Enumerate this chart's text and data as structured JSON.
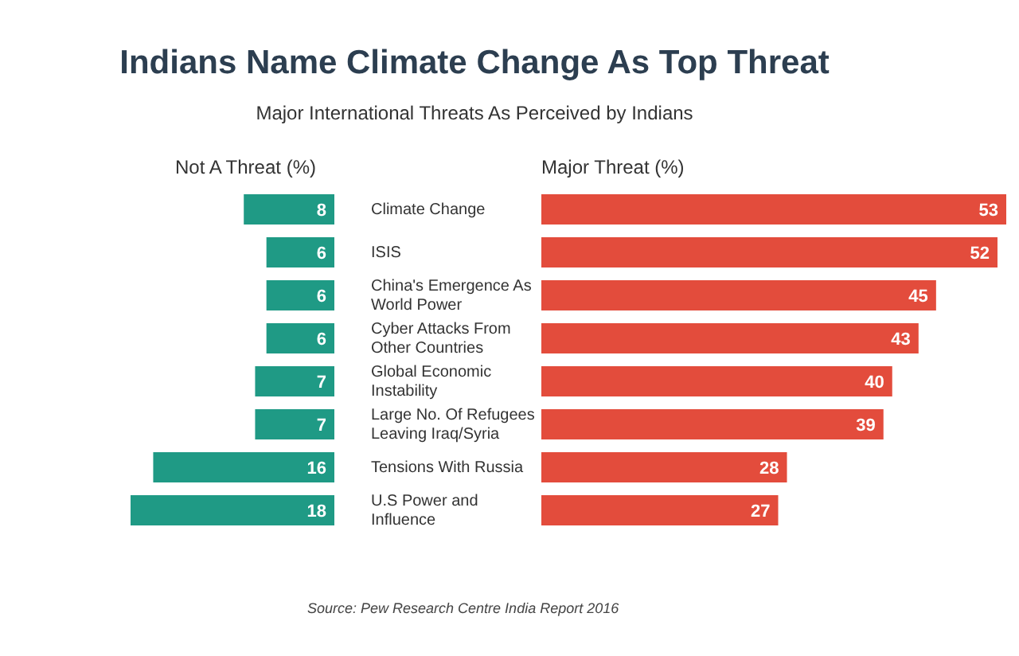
{
  "chart_data": [
    {
      "type": "bar",
      "orientation": "horizontal",
      "title": "Indians Name Climate Change As Top Threat",
      "subtitle": "Major International Threats As Perceived by Indians",
      "xlabel": "Not A Threat (%)",
      "categories": [
        "Climate Change",
        "ISIS",
        "China's Emergence As World Power",
        "Cyber Attacks From Other Countries",
        "Global Economic Instability",
        "Large No. Of Refugees Leaving Iraq/Syria",
        "Tensions With Russia",
        "U.S Power and Influence"
      ],
      "values": [
        8,
        6,
        6,
        6,
        7,
        7,
        16,
        18
      ],
      "color": "#1f9a85",
      "xlim": [
        18,
        0
      ],
      "data_labels": true,
      "tick_labels": "y",
      "annotations": [
        "Source: Pew Research Centre India Report 2016"
      ]
    },
    {
      "type": "bar",
      "orientation": "horizontal",
      "xlabel": "Major Threat (%)",
      "categories": [
        null,
        null,
        null,
        null,
        null,
        null,
        null,
        null
      ],
      "values": [
        53,
        52,
        45,
        43,
        40,
        39,
        28,
        27
      ],
      "color": "#e34c3c",
      "xlim": [
        0,
        53
      ],
      "data_labels": true,
      "tick_labels": false
    }
  ]
}
